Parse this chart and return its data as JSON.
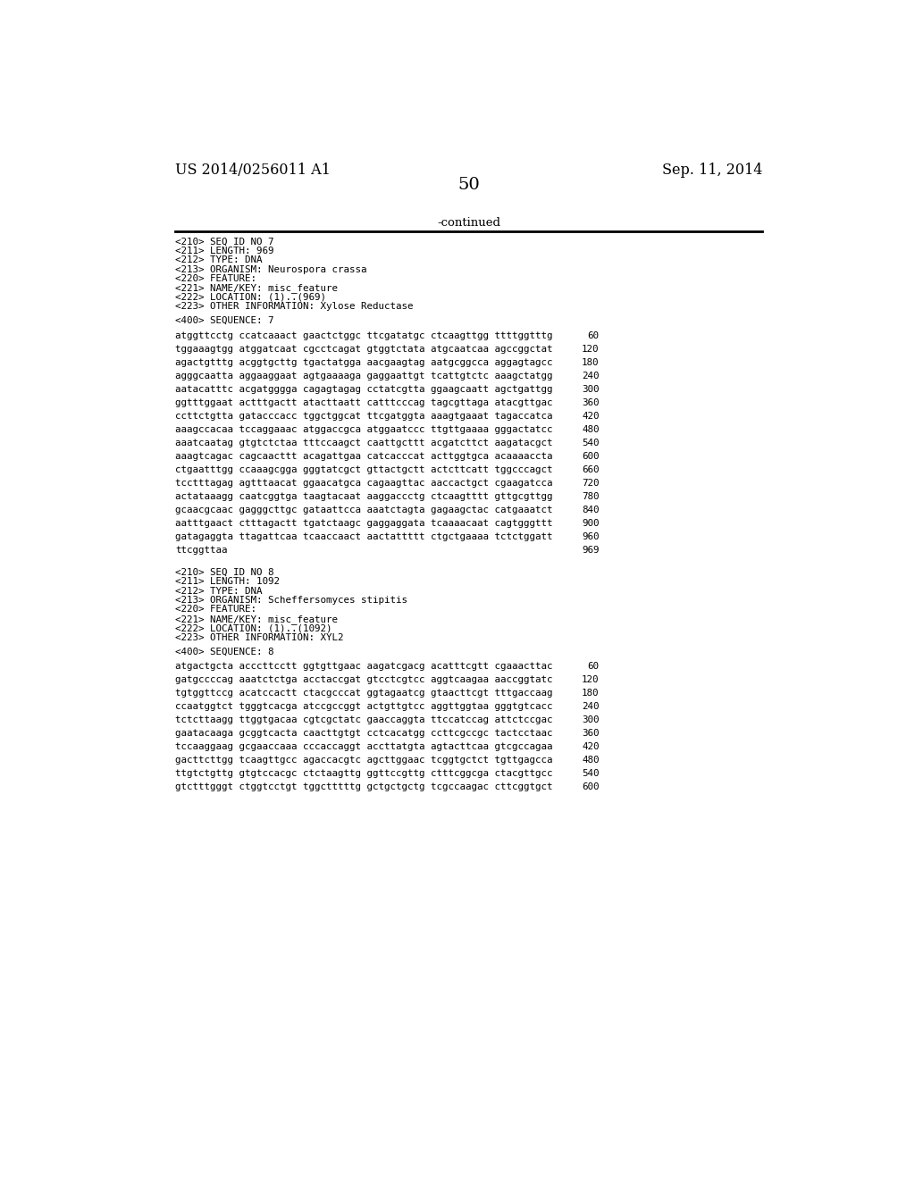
{
  "header_left": "US 2014/0256011 A1",
  "header_right": "Sep. 11, 2014",
  "page_number": "50",
  "continued_text": "-continued",
  "background_color": "#ffffff",
  "text_color": "#000000",
  "seq7_header": [
    "<210> SEQ ID NO 7",
    "<211> LENGTH: 969",
    "<212> TYPE: DNA",
    "<213> ORGANISM: Neurospora crassa",
    "<220> FEATURE:",
    "<221> NAME/KEY: misc_feature",
    "<222> LOCATION: (1)..(969)",
    "<223> OTHER INFORMATION: Xylose Reductase"
  ],
  "seq7_label": "<400> SEQUENCE: 7",
  "seq7_lines": [
    [
      "atggttcctg ccatcaaact gaactctggc ttcgatatgc ctcaagttgg ttttggtttg",
      "60"
    ],
    [
      "tggaaagtgg atggatcaat cgcctcagat gtggtctata atgcaatcaa agccggctat",
      "120"
    ],
    [
      "agactgtttg acggtgcttg tgactatgga aacgaagtag aatgcggcca aggagtagcc",
      "180"
    ],
    [
      "agggcaatta aggaaggaat agtgaaaaga gaggaattgt tcattgtctc aaagctatgg",
      "240"
    ],
    [
      "aatacatttc acgatgggga cagagtagag cctatcgtta ggaagcaatt agctgattgg",
      "300"
    ],
    [
      "ggtttggaat actttgactt atacttaatt catttcccag tagcgttaga atacgttgac",
      "360"
    ],
    [
      "ccttctgtta gatacccacc tggctggcat ttcgatggta aaagtgaaat tagaccatca",
      "420"
    ],
    [
      "aaagccacaa tccaggaaac atggaccgca atggaatccc ttgttgaaaa gggactatcc",
      "480"
    ],
    [
      "aaatcaatag gtgtctctaa tttccaagct caattgcttt acgatcttct aagatacgct",
      "540"
    ],
    [
      "aaagtcagac cagcaacttt acagattgaa catcacccat acttggtgca acaaaaccta",
      "600"
    ],
    [
      "ctgaatttgg ccaaagcgga gggtatcgct gttactgctt actcttcatt tggcccagct",
      "660"
    ],
    [
      "tcctttagag agtttaacat ggaacatgca cagaagttac aaccactgct cgaagatcca",
      "720"
    ],
    [
      "actataaagg caatcggtga taagtacaat aaggaccctg ctcaagtttt gttgcgttgg",
      "780"
    ],
    [
      "gcaacgcaac gagggcttgc gataattcca aaatctagta gagaagctac catgaaatct",
      "840"
    ],
    [
      "aatttgaact ctttagactt tgatctaagc gaggaggata tcaaaacaat cagtgggttt",
      "900"
    ],
    [
      "gatagaggta ttagattcaa tcaaccaact aactattttt ctgctgaaaa tctctggatt",
      "960"
    ],
    [
      "ttcggttaa",
      "969"
    ]
  ],
  "seq8_header": [
    "<210> SEQ ID NO 8",
    "<211> LENGTH: 1092",
    "<212> TYPE: DNA",
    "<213> ORGANISM: Scheffersomyces stipitis",
    "<220> FEATURE:",
    "<221> NAME/KEY: misc_feature",
    "<222> LOCATION: (1)..(1092)",
    "<223> OTHER INFORMATION: XYL2"
  ],
  "seq8_label": "<400> SEQUENCE: 8",
  "seq8_lines": [
    [
      "atgactgcta acccttcctt ggtgttgaac aagatcgacg acatttcgtt cgaaacttac",
      "60"
    ],
    [
      "gatgccccag aaatctctga acctaccgat gtcctcgtcc aggtcaagaa aaccggtatc",
      "120"
    ],
    [
      "tgtggttccg acatccactt ctacgcccat ggtagaatcg gtaacttcgt tttgaccaag",
      "180"
    ],
    [
      "ccaatggtct tgggtcacga atccgccggt actgttgtcc aggttggtaa gggtgtcacc",
      "240"
    ],
    [
      "tctcttaagg ttggtgacaa cgtcgctatc gaaccaggta ttccatccag attctccgac",
      "300"
    ],
    [
      "gaatacaaga gcggtcacta caacttgtgt cctcacatgg ccttcgccgc tactcctaac",
      "360"
    ],
    [
      "tccaaggaag gcgaaccaaa cccaccaggt accttatgta agtacttcaa gtcgccagaa",
      "420"
    ],
    [
      "gacttcttgg tcaagttgcc agaccacgtc agcttggaac tcggtgctct tgttgagcca",
      "480"
    ],
    [
      "ttgtctgttg gtgtccacgc ctctaagttg ggttccgttg ctttcggcga ctacgttgcc",
      "540"
    ],
    [
      "gtctttgggt ctggtcctgt tggctttttg gctgctgctg tcgccaagac cttcggtgct",
      "600"
    ]
  ]
}
